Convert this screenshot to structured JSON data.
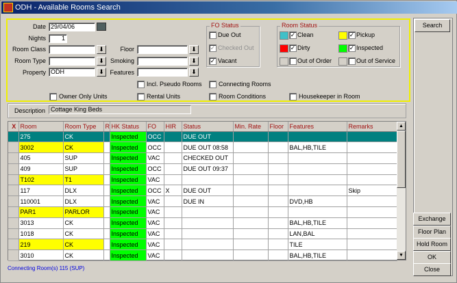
{
  "window": {
    "title": "ODH - Available Rooms Search"
  },
  "form": {
    "date_label": "Date",
    "date_value": "29/04/06",
    "nights_label": "Nights",
    "nights_value": "1",
    "room_class_label": "Room Class",
    "room_class_value": "",
    "room_type_label": "Room Type",
    "room_type_value": "",
    "property_label": "Property",
    "property_value": "ODH",
    "floor_label": "Floor",
    "floor_value": "",
    "smoking_label": "Smoking",
    "smoking_value": "",
    "features_label": "Features",
    "features_value": "",
    "incl_pseudo": {
      "label": "Incl. Pseudo Rooms",
      "checked": false
    },
    "owner_only": {
      "label": "Owner Only Units",
      "checked": false
    },
    "rental_units": {
      "label": "Rental Units",
      "checked": false
    },
    "connecting_rooms": {
      "label": "Connecting Rooms",
      "checked": false
    },
    "room_conditions": {
      "label": "Room Conditions",
      "checked": false
    },
    "housekeeper": {
      "label": "Housekeeper in Room",
      "checked": false
    },
    "description_label": "Description",
    "description_value": "Cottage King Beds"
  },
  "fo_status": {
    "title": "FO Status",
    "items": [
      {
        "label": "Due Out",
        "checked": false,
        "disabled": false
      },
      {
        "label": "Checked Out",
        "checked": true,
        "disabled": true
      },
      {
        "label": "Vacant",
        "checked": true,
        "disabled": false
      }
    ]
  },
  "room_status": {
    "title": "Room Status",
    "items": [
      {
        "label": "Clean",
        "checked": true,
        "color": "#40c0c8"
      },
      {
        "label": "Pickup",
        "checked": true,
        "color": "#ffff00"
      },
      {
        "label": "Dirty",
        "checked": true,
        "color": "#ff0000"
      },
      {
        "label": "Inspected",
        "checked": true,
        "color": "#00ff00"
      },
      {
        "label": "Out of Order",
        "checked": false,
        "color": "#d4d0c8"
      },
      {
        "label": "Out of Service",
        "checked": false,
        "color": "#d4d0c8"
      }
    ]
  },
  "grid": {
    "columns": [
      "X",
      "Room",
      "Room Type",
      "R",
      "HK Status",
      "FO",
      "HIR",
      "Status",
      "Min. Rate",
      "Floor",
      "Features",
      "Remarks"
    ],
    "rows": [
      {
        "room": "275",
        "type": "CK",
        "r": "",
        "hk": "Inspected",
        "fo": "OCC",
        "hir": "",
        "status": "DUE OUT",
        "rate": "",
        "floor": "",
        "features": "",
        "remarks": "",
        "yellow": false,
        "selected": true
      },
      {
        "room": "3002",
        "type": "CK",
        "r": "",
        "hk": "Inspected",
        "fo": "OCC",
        "hir": "",
        "status": "DUE OUT 08:58",
        "rate": "",
        "floor": "",
        "features": "BAL,HB,TILE",
        "remarks": "",
        "yellow": true
      },
      {
        "room": "405",
        "type": "SUP",
        "r": "",
        "hk": "Inspected",
        "fo": "VAC",
        "hir": "",
        "status": "CHECKED OUT",
        "rate": "",
        "floor": "",
        "features": "",
        "remarks": "",
        "yellow": false
      },
      {
        "room": "409",
        "type": "SUP",
        "r": "",
        "hk": "Inspected",
        "fo": "OCC",
        "hir": "",
        "status": "DUE OUT 09:37",
        "rate": "",
        "floor": "",
        "features": "",
        "remarks": "",
        "yellow": false
      },
      {
        "room": "T102",
        "type": "T1",
        "r": "",
        "hk": "Inspected",
        "fo": "VAC",
        "hir": "",
        "status": "",
        "rate": "",
        "floor": "",
        "features": "",
        "remarks": "",
        "yellow": true
      },
      {
        "room": "117",
        "type": "DLX",
        "r": "",
        "hk": "Inspected",
        "fo": "OCC",
        "hir": "X",
        "status": "DUE OUT",
        "rate": "",
        "floor": "",
        "features": "",
        "remarks": "Skip",
        "yellow": false
      },
      {
        "room": "110001",
        "type": "DLX",
        "r": "",
        "hk": "Inspected",
        "fo": "VAC",
        "hir": "",
        "status": "DUE IN",
        "rate": "",
        "floor": "",
        "features": "DVD,HB",
        "remarks": "",
        "yellow": false
      },
      {
        "room": "PAR1",
        "type": "PARLOR",
        "r": "",
        "hk": "Inspected",
        "fo": "VAC",
        "hir": "",
        "status": "",
        "rate": "",
        "floor": "",
        "features": "",
        "remarks": "",
        "yellow": true
      },
      {
        "room": "3013",
        "type": "CK",
        "r": "",
        "hk": "Inspected",
        "fo": "VAC",
        "hir": "",
        "status": "",
        "rate": "",
        "floor": "",
        "features": "BAL,HB,TILE",
        "remarks": "",
        "yellow": false
      },
      {
        "room": "1018",
        "type": "CK",
        "r": "",
        "hk": "Inspected",
        "fo": "VAC",
        "hir": "",
        "status": "",
        "rate": "",
        "floor": "",
        "features": "LAN,BAL",
        "remarks": "",
        "yellow": false
      },
      {
        "room": "219",
        "type": "CK",
        "r": "",
        "hk": "Inspected",
        "fo": "VAC",
        "hir": "",
        "status": "",
        "rate": "",
        "floor": "",
        "features": "TILE",
        "remarks": "",
        "yellow": true
      },
      {
        "room": "3010",
        "type": "CK",
        "r": "",
        "hk": "Inspected",
        "fo": "VAC",
        "hir": "",
        "status": "",
        "rate": "",
        "floor": "",
        "features": "BAL,HB,TILE",
        "remarks": "",
        "yellow": false
      }
    ]
  },
  "footer": {
    "connecting_text": "Connecting Room(s) 115 (SUP)"
  },
  "buttons": {
    "search": "Search",
    "exchange": "Exchange",
    "floor_plan": "Floor Plan",
    "hold_room": "Hold Room",
    "ok": "OK",
    "close": "Close"
  }
}
